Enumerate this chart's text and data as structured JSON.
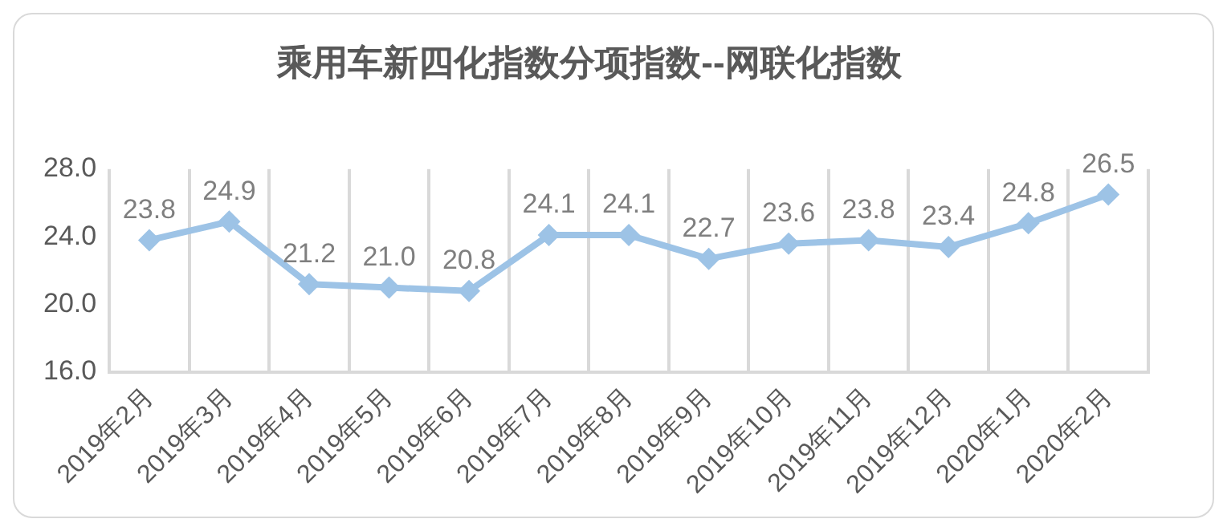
{
  "chart_data": {
    "type": "line",
    "title": "乘用车新四化指数分项指数--网联化指数",
    "categories": [
      "2019年2月",
      "2019年3月",
      "2019年4月",
      "2019年5月",
      "2019年6月",
      "2019年7月",
      "2019年8月",
      "2019年9月",
      "2019年10月",
      "2019年11月",
      "2019年12月",
      "2020年1月",
      "2020年2月"
    ],
    "series": [
      {
        "color": "#9dc3e6",
        "values": [
          23.8,
          24.9,
          21.2,
          21.0,
          20.8,
          24.1,
          24.1,
          22.7,
          23.6,
          23.8,
          23.4,
          24.8,
          26.5
        ],
        "value_labels": [
          "23.8",
          "24.9",
          "21.2",
          "21.0",
          "20.8",
          "24.1",
          "24.1",
          "22.7",
          "23.6",
          "23.8",
          "23.4",
          "24.8",
          "26.5"
        ]
      }
    ],
    "ylim": [
      16,
      28
    ],
    "yticks": [
      {
        "value": 16,
        "label": "16.0"
      },
      {
        "value": 20,
        "label": "20.0"
      },
      {
        "value": 24,
        "label": "24.0"
      },
      {
        "value": 28,
        "label": "28.0"
      }
    ],
    "grid": "x",
    "legend": false,
    "marker": "diamond",
    "line_style": "solid"
  }
}
